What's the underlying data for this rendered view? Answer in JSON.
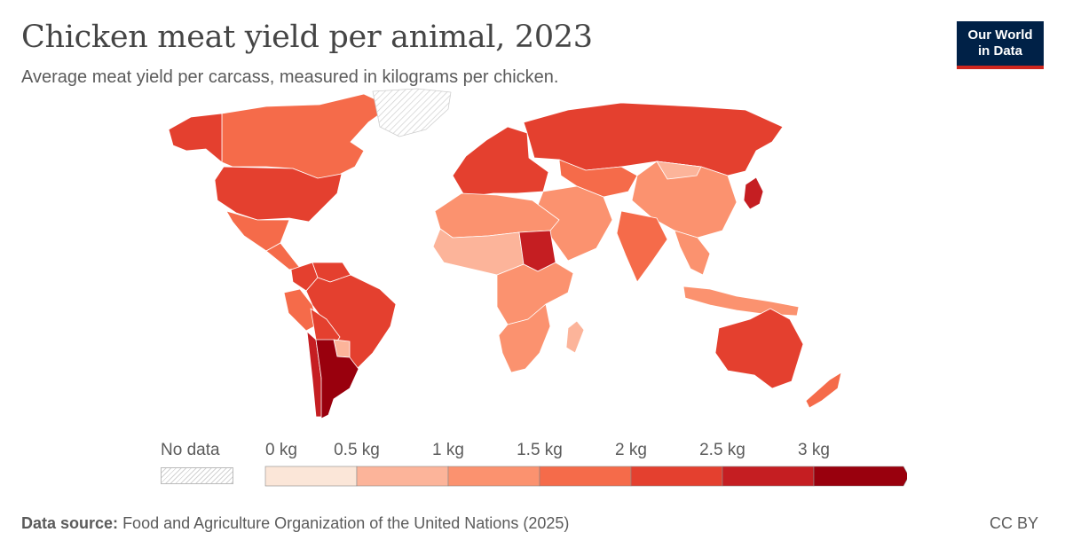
{
  "header": {
    "title": "Chicken meat yield per animal, 2023",
    "subtitle": "Average meat yield per carcass, measured in kilograms per chicken."
  },
  "logo": {
    "line1": "Our World",
    "line2": "in Data"
  },
  "legend": {
    "no_data_label": "No data",
    "ticks": [
      "0 kg",
      "0.5 kg",
      "1 kg",
      "1.5 kg",
      "2 kg",
      "2.5 kg",
      "3 kg"
    ],
    "colors": [
      "#fbe6d8",
      "#fcb49a",
      "#fb926f",
      "#f56b4a",
      "#e4402f",
      "#c51e22",
      "#99000d"
    ],
    "no_data_pattern": "hatched"
  },
  "regions": [
    {
      "name": "Canada",
      "bin": 3
    },
    {
      "name": "United States",
      "bin": 4
    },
    {
      "name": "Alaska",
      "bin": 4
    },
    {
      "name": "Mexico",
      "bin": 3
    },
    {
      "name": "Central America",
      "bin": 3
    },
    {
      "name": "Colombia",
      "bin": 4
    },
    {
      "name": "Venezuela",
      "bin": 4
    },
    {
      "name": "Peru",
      "bin": 3
    },
    {
      "name": "Brazil",
      "bin": 4
    },
    {
      "name": "Bolivia",
      "bin": 4
    },
    {
      "name": "Paraguay",
      "bin": 1
    },
    {
      "name": "Chile",
      "bin": 5
    },
    {
      "name": "Argentina",
      "bin": 6
    },
    {
      "name": "Greenland",
      "bin": -1
    },
    {
      "name": "Europe",
      "bin": 4
    },
    {
      "name": "Russia",
      "bin": 4
    },
    {
      "name": "Central Asia",
      "bin": 3
    },
    {
      "name": "China",
      "bin": 2
    },
    {
      "name": "Mongolia",
      "bin": 1
    },
    {
      "name": "Japan",
      "bin": 5
    },
    {
      "name": "Middle East",
      "bin": 2
    },
    {
      "name": "North Africa",
      "bin": 2
    },
    {
      "name": "West Africa",
      "bin": 1
    },
    {
      "name": "Sudan",
      "bin": 5
    },
    {
      "name": "Central Africa",
      "bin": 2
    },
    {
      "name": "Southern Africa",
      "bin": 2
    },
    {
      "name": "Madagascar",
      "bin": 1
    },
    {
      "name": "India",
      "bin": 3
    },
    {
      "name": "Southeast Asia",
      "bin": 2
    },
    {
      "name": "Indonesia",
      "bin": 2
    },
    {
      "name": "Australia",
      "bin": 4
    },
    {
      "name": "New Zealand",
      "bin": 3
    }
  ],
  "footer": {
    "source_label": "Data source:",
    "source_text": "Food and Agriculture Organization of the United Nations (2025)",
    "license": "CC BY"
  }
}
